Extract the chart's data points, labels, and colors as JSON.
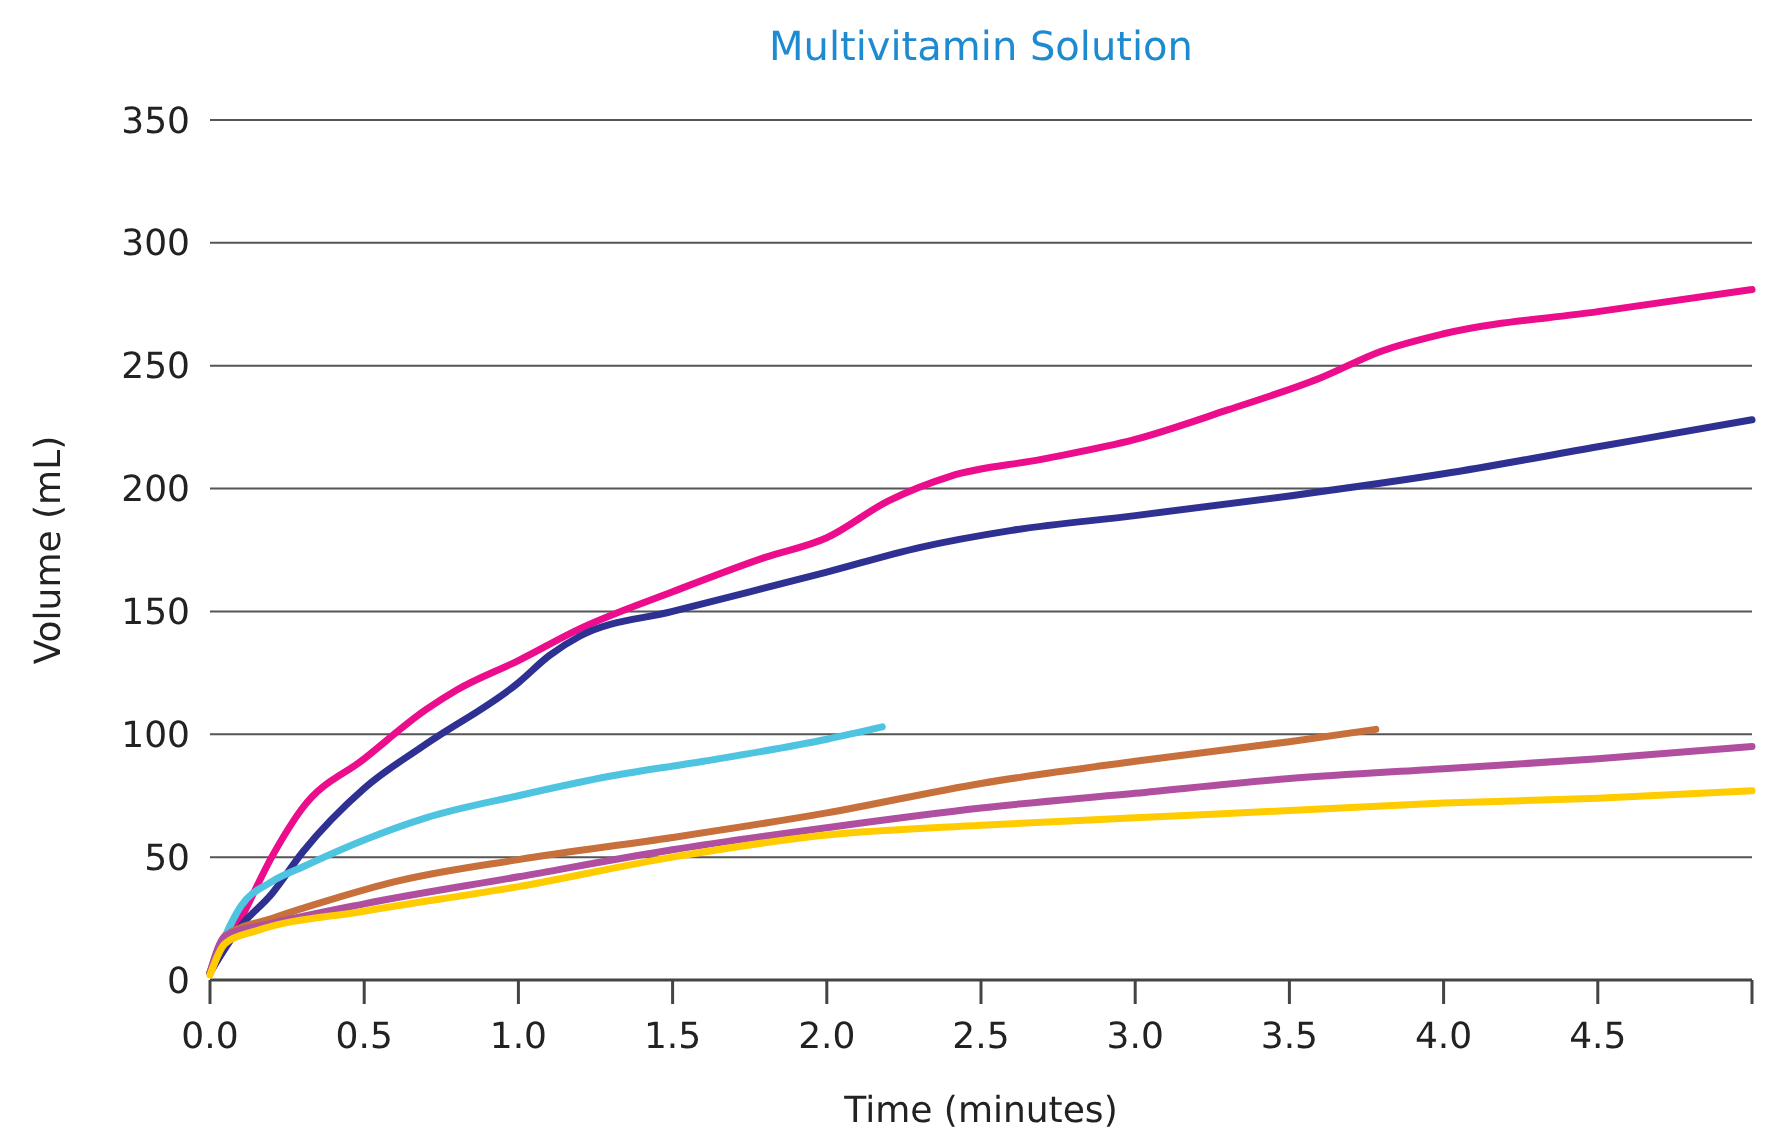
{
  "chart_data": {
    "type": "line",
    "title": "Multivitamin Solution",
    "xlabel": "Time (minutes)",
    "ylabel": "Volume (mL)",
    "xlim": [
      0,
      5
    ],
    "xticks": [
      {
        "value": 0,
        "label": "0.0"
      },
      {
        "value": 0.5,
        "label": "0.5"
      },
      {
        "value": 1,
        "label": "1.0"
      },
      {
        "value": 1.5,
        "label": "1.5"
      },
      {
        "value": 2,
        "label": "2.0"
      },
      {
        "value": 2.5,
        "label": "2.5"
      },
      {
        "value": 3,
        "label": "3.0"
      },
      {
        "value": 3.5,
        "label": "3.5"
      },
      {
        "value": 4,
        "label": "4.0"
      },
      {
        "value": 4.5,
        "label": "4.5"
      },
      {
        "value": 5,
        "label": null
      }
    ],
    "ylim": [
      0,
      350
    ],
    "yticks": [
      0,
      50,
      100,
      150,
      200,
      250,
      300,
      350
    ],
    "grid": "y",
    "marker": "none",
    "line_style": "solid",
    "series": [
      {
        "color": "#ec0d8c",
        "x": [
          0,
          0.1,
          0.2,
          0.3,
          0.5,
          0.7,
          0.8,
          1.0,
          1.2,
          1.5,
          1.8,
          2.0,
          2.2,
          2.4,
          2.7,
          3.0,
          3.3,
          3.6,
          3.8,
          4.0,
          4.5,
          5.0
        ],
        "values": [
          3,
          25,
          50,
          70,
          90,
          110,
          118,
          130,
          143,
          158,
          172,
          180,
          195,
          205,
          212,
          220,
          232,
          245,
          256,
          263,
          272,
          281
        ]
      },
      {
        "color": "#2e3192",
        "x": [
          0,
          0.1,
          0.2,
          0.3,
          0.5,
          0.7,
          1.0,
          1.1,
          1.2,
          1.5,
          2.0,
          2.3,
          2.6,
          3.0,
          3.5,
          4.0,
          4.5,
          5.0
        ],
        "values": [
          3,
          22,
          35,
          52,
          78,
          96,
          121,
          132,
          140,
          150,
          166,
          176,
          183,
          189,
          197,
          206,
          217,
          228
        ]
      },
      {
        "color": "#4fc4e0",
        "x": [
          0,
          0.1,
          0.2,
          0.3,
          0.5,
          0.7,
          1.0,
          1.3,
          1.6,
          2.0,
          2.18
        ],
        "values": [
          3,
          30,
          40,
          46,
          57,
          66,
          75,
          83,
          89,
          98,
          103
        ]
      },
      {
        "color": "#c8703c",
        "x": [
          0,
          0.05,
          0.2,
          0.4,
          0.6,
          1.0,
          1.5,
          2.0,
          2.5,
          3.0,
          3.5,
          3.78
        ],
        "values": [
          3,
          18,
          25,
          33,
          40,
          49,
          58,
          68,
          80,
          89,
          97,
          102
        ]
      },
      {
        "color": "#b04fa0",
        "x": [
          0,
          0.05,
          0.2,
          0.5,
          1.0,
          1.5,
          2.0,
          2.5,
          3.0,
          3.5,
          4.0,
          4.5,
          5.0
        ],
        "values": [
          3,
          18,
          23,
          31,
          42,
          53,
          62,
          70,
          76,
          82,
          86,
          90,
          95
        ]
      },
      {
        "color": "#ffcc00",
        "x": [
          0,
          0.05,
          0.15,
          0.5,
          1.0,
          1.5,
          2.0,
          2.5,
          3.0,
          3.5,
          4.0,
          4.5,
          5.0
        ],
        "values": [
          2,
          15,
          20,
          28,
          38,
          50,
          59,
          63,
          66,
          69,
          72,
          74,
          77
        ]
      }
    ]
  }
}
